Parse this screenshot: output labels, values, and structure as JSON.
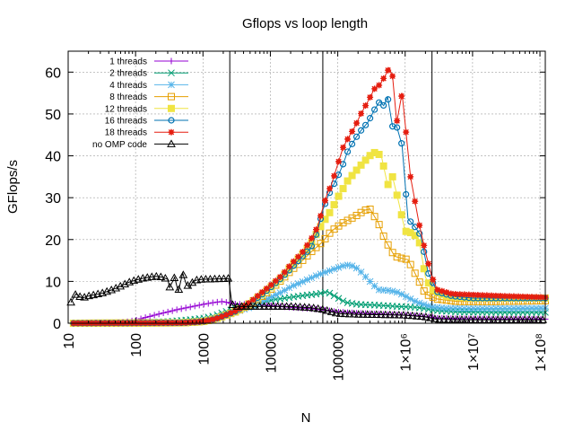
{
  "chart_data": {
    "type": "line",
    "title": "Gflops vs loop length",
    "xlabel": "N",
    "ylabel": "GFlops/s",
    "x_scale": "log",
    "xlim": [
      10,
      120000000
    ],
    "ylim": [
      0,
      65
    ],
    "grid": true,
    "legend_position": "top-left",
    "x_ticks": [
      {
        "value": 10,
        "label": "10"
      },
      {
        "value": 100,
        "label": "100"
      },
      {
        "value": 1000,
        "label": "1000"
      },
      {
        "value": 10000,
        "label": "10000"
      },
      {
        "value": 100000,
        "label": "100000"
      },
      {
        "value": 1000000,
        "label": "1×10⁶"
      },
      {
        "value": 10000000,
        "label": "1×10⁷"
      },
      {
        "value": 100000000,
        "label": "1×10⁸"
      }
    ],
    "y_ticks": [
      {
        "value": 0,
        "label": "0"
      },
      {
        "value": 10,
        "label": "10"
      },
      {
        "value": 20,
        "label": "20"
      },
      {
        "value": 30,
        "label": "30"
      },
      {
        "value": 40,
        "label": "40"
      },
      {
        "value": 50,
        "label": "50"
      },
      {
        "value": 60,
        "label": "60"
      }
    ],
    "vertical_lines": [
      2500,
      60000,
      2500000
    ],
    "series": [
      {
        "name": "1 threads",
        "color": "#9400d3",
        "marker": "plus",
        "points": [
          [
            12,
            0
          ],
          [
            20,
            0
          ],
          [
            40,
            0
          ],
          [
            70,
            0.3
          ],
          [
            100,
            0.7
          ],
          [
            150,
            1.5
          ],
          [
            250,
            2.4
          ],
          [
            400,
            3.2
          ],
          [
            700,
            4
          ],
          [
            1000,
            4.5
          ],
          [
            1500,
            5
          ],
          [
            2000,
            5.2
          ],
          [
            2500,
            4.8
          ],
          [
            3000,
            4.6
          ],
          [
            5000,
            4.5
          ],
          [
            8000,
            4.3
          ],
          [
            12000,
            4.1
          ],
          [
            20000,
            3.8
          ],
          [
            40000,
            3.5
          ],
          [
            60000,
            3.2
          ],
          [
            100000,
            2.7
          ],
          [
            200000,
            2.4
          ],
          [
            400000,
            2.2
          ],
          [
            800000,
            2
          ],
          [
            1500000,
            1.8
          ],
          [
            3000000,
            1.2
          ],
          [
            6000000,
            1.1
          ],
          [
            20000000,
            1
          ],
          [
            120000000,
            1
          ]
        ]
      },
      {
        "name": "2 threads",
        "color": "#009e73",
        "marker": "cross",
        "points": [
          [
            12,
            0
          ],
          [
            50,
            0
          ],
          [
            100,
            0.1
          ],
          [
            300,
            0.4
          ],
          [
            700,
            0.9
          ],
          [
            1000,
            1.2
          ],
          [
            1500,
            1.8
          ],
          [
            2000,
            2.6
          ],
          [
            3000,
            3.5
          ],
          [
            5000,
            4.3
          ],
          [
            8000,
            5.1
          ],
          [
            12000,
            5.7
          ],
          [
            20000,
            6.2
          ],
          [
            30000,
            6.6
          ],
          [
            50000,
            7
          ],
          [
            70000,
            7.5
          ],
          [
            90000,
            6.5
          ],
          [
            130000,
            5
          ],
          [
            200000,
            4.5
          ],
          [
            400000,
            4.3
          ],
          [
            800000,
            4
          ],
          [
            1500000,
            3.8
          ],
          [
            3000000,
            3
          ],
          [
            6000000,
            2.7
          ],
          [
            20000000,
            2.6
          ],
          [
            120000000,
            2.6
          ]
        ]
      },
      {
        "name": "4 threads",
        "color": "#56b4e9",
        "marker": "star",
        "points": [
          [
            12,
            0
          ],
          [
            100,
            0.1
          ],
          [
            300,
            0.2
          ],
          [
            700,
            0.3
          ],
          [
            1000,
            0.7
          ],
          [
            1500,
            1.2
          ],
          [
            2000,
            1.9
          ],
          [
            3000,
            2.7
          ],
          [
            5000,
            3.8
          ],
          [
            7000,
            4.9
          ],
          [
            10000,
            6.2
          ],
          [
            15000,
            7.5
          ],
          [
            20000,
            8.7
          ],
          [
            30000,
            9.9
          ],
          [
            50000,
            11.5
          ],
          [
            80000,
            12.7
          ],
          [
            120000,
            13.7
          ],
          [
            150000,
            14
          ],
          [
            200000,
            13
          ],
          [
            300000,
            10
          ],
          [
            400000,
            8
          ],
          [
            600000,
            7.8
          ],
          [
            800000,
            7.3
          ],
          [
            1000000,
            6.5
          ],
          [
            1500000,
            5
          ],
          [
            2500000,
            3.9
          ],
          [
            4000000,
            3.6
          ],
          [
            10000000,
            3.5
          ],
          [
            120000000,
            3.6
          ]
        ]
      },
      {
        "name": "8 threads",
        "color": "#e69f00",
        "marker": "square",
        "points": [
          [
            12,
            0
          ],
          [
            500,
            0.1
          ],
          [
            1000,
            0.4
          ],
          [
            1500,
            1
          ],
          [
            2000,
            1.7
          ],
          [
            3000,
            2.7
          ],
          [
            5000,
            4.5
          ],
          [
            7000,
            6
          ],
          [
            10000,
            8
          ],
          [
            15000,
            10.5
          ],
          [
            20000,
            12.5
          ],
          [
            30000,
            15
          ],
          [
            40000,
            17
          ],
          [
            60000,
            19.5
          ],
          [
            80000,
            22
          ],
          [
            120000,
            24
          ],
          [
            180000,
            25.5
          ],
          [
            250000,
            27
          ],
          [
            300000,
            27.3
          ],
          [
            400000,
            24
          ],
          [
            500000,
            20
          ],
          [
            700000,
            16
          ],
          [
            900000,
            15.5
          ],
          [
            1100000,
            15.2
          ],
          [
            1500000,
            11
          ],
          [
            2000000,
            7
          ],
          [
            3000000,
            5.8
          ],
          [
            6000000,
            5.2
          ],
          [
            20000000,
            5.2
          ],
          [
            120000000,
            5.4
          ]
        ]
      },
      {
        "name": "12 threads",
        "color": "#f0e442",
        "marker": "square-filled",
        "points": [
          [
            12,
            0
          ],
          [
            500,
            0.1
          ],
          [
            1000,
            0.4
          ],
          [
            1500,
            1
          ],
          [
            2000,
            1.7
          ],
          [
            3000,
            2.8
          ],
          [
            5000,
            4.8
          ],
          [
            7000,
            6.5
          ],
          [
            10000,
            8.5
          ],
          [
            15000,
            11
          ],
          [
            20000,
            13.5
          ],
          [
            30000,
            16.5
          ],
          [
            40000,
            19
          ],
          [
            60000,
            24
          ],
          [
            80000,
            27
          ],
          [
            100000,
            30
          ],
          [
            140000,
            34
          ],
          [
            200000,
            37
          ],
          [
            260000,
            39
          ],
          [
            320000,
            40.5
          ],
          [
            380000,
            41
          ],
          [
            450000,
            39.5
          ],
          [
            550000,
            33
          ],
          [
            650000,
            35
          ],
          [
            800000,
            29
          ],
          [
            1000000,
            22
          ],
          [
            1300000,
            21.5
          ],
          [
            1600000,
            20
          ],
          [
            2000000,
            11
          ],
          [
            2500000,
            8
          ],
          [
            4000000,
            6.5
          ],
          [
            10000000,
            6
          ],
          [
            120000000,
            6
          ]
        ]
      },
      {
        "name": "16 threads",
        "color": "#0072b2",
        "marker": "circle",
        "points": [
          [
            12,
            0
          ],
          [
            500,
            0.1
          ],
          [
            1000,
            0.4
          ],
          [
            1500,
            1
          ],
          [
            2000,
            1.7
          ],
          [
            3000,
            2.8
          ],
          [
            5000,
            4.8
          ],
          [
            7000,
            6.5
          ],
          [
            10000,
            8.5
          ],
          [
            15000,
            11
          ],
          [
            20000,
            13
          ],
          [
            30000,
            16
          ],
          [
            40000,
            18
          ],
          [
            50000,
            22
          ],
          [
            60000,
            27
          ],
          [
            70000,
            30
          ],
          [
            80000,
            32
          ],
          [
            100000,
            35
          ],
          [
            120000,
            38
          ],
          [
            140000,
            41
          ],
          [
            180000,
            44
          ],
          [
            220000,
            46
          ],
          [
            280000,
            48
          ],
          [
            350000,
            51
          ],
          [
            420000,
            53
          ],
          [
            480000,
            52
          ],
          [
            550000,
            54
          ],
          [
            650000,
            47
          ],
          [
            750000,
            47
          ],
          [
            900000,
            42.5
          ],
          [
            1100000,
            25
          ],
          [
            1400000,
            23
          ],
          [
            1700000,
            21
          ],
          [
            2200000,
            12
          ],
          [
            3000000,
            7.5
          ],
          [
            5000000,
            6.5
          ],
          [
            10000000,
            6
          ],
          [
            120000000,
            6
          ]
        ]
      },
      {
        "name": "18 threads",
        "color": "#e51e10",
        "marker": "star-filled",
        "points": [
          [
            12,
            0
          ],
          [
            500,
            0.1
          ],
          [
            1000,
            0.4
          ],
          [
            1500,
            1
          ],
          [
            2000,
            1.7
          ],
          [
            3000,
            2.9
          ],
          [
            5000,
            5
          ],
          [
            7000,
            7
          ],
          [
            10000,
            9
          ],
          [
            15000,
            11.5
          ],
          [
            20000,
            14
          ],
          [
            30000,
            17
          ],
          [
            40000,
            20
          ],
          [
            50000,
            23
          ],
          [
            60000,
            27.5
          ],
          [
            70000,
            31
          ],
          [
            80000,
            33
          ],
          [
            100000,
            38
          ],
          [
            120000,
            42
          ],
          [
            140000,
            44
          ],
          [
            180000,
            47
          ],
          [
            220000,
            50
          ],
          [
            280000,
            53
          ],
          [
            350000,
            56
          ],
          [
            420000,
            57
          ],
          [
            500000,
            59
          ],
          [
            580000,
            61
          ],
          [
            650000,
            59
          ],
          [
            750000,
            48
          ],
          [
            900000,
            55
          ],
          [
            1200000,
            35
          ],
          [
            1600000,
            24
          ],
          [
            2000000,
            17
          ],
          [
            2500000,
            11
          ],
          [
            3000000,
            8
          ],
          [
            5000000,
            7
          ],
          [
            10000000,
            6.8
          ],
          [
            30000000,
            6.5
          ],
          [
            120000000,
            6.2
          ]
        ]
      },
      {
        "name": "no OMP code",
        "color": "#000000",
        "marker": "triangle",
        "points": [
          [
            11,
            5
          ],
          [
            13,
            7
          ],
          [
            16,
            6
          ],
          [
            20,
            6.5
          ],
          [
            25,
            6.8
          ],
          [
            32,
            7.2
          ],
          [
            40,
            7.7
          ],
          [
            50,
            8.3
          ],
          [
            63,
            9
          ],
          [
            80,
            9.8
          ],
          [
            100,
            10.3
          ],
          [
            125,
            10.7
          ],
          [
            160,
            11
          ],
          [
            200,
            11.2
          ],
          [
            250,
            11
          ],
          [
            300,
            10.5
          ],
          [
            320,
            8.5
          ],
          [
            380,
            11
          ],
          [
            430,
            7.5
          ],
          [
            500,
            12
          ],
          [
            560,
            9.5
          ],
          [
            630,
            8.5
          ],
          [
            710,
            10
          ],
          [
            800,
            10.3
          ],
          [
            1000,
            10.5
          ],
          [
            1300,
            10.5
          ],
          [
            1600,
            10.6
          ],
          [
            2000,
            10.6
          ],
          [
            2400,
            10.7
          ],
          [
            2700,
            4.5
          ],
          [
            3000,
            4
          ],
          [
            4000,
            4
          ],
          [
            6000,
            4
          ],
          [
            10000,
            4
          ],
          [
            20000,
            4
          ],
          [
            40000,
            3.7
          ],
          [
            60000,
            3.3
          ],
          [
            100000,
            2.3
          ],
          [
            200000,
            2.1
          ],
          [
            500000,
            2
          ],
          [
            1000000,
            1.9
          ],
          [
            2000000,
            1.5
          ],
          [
            3000000,
            0.9
          ],
          [
            10000000,
            0.8
          ],
          [
            120000000,
            0.8
          ]
        ]
      }
    ]
  }
}
